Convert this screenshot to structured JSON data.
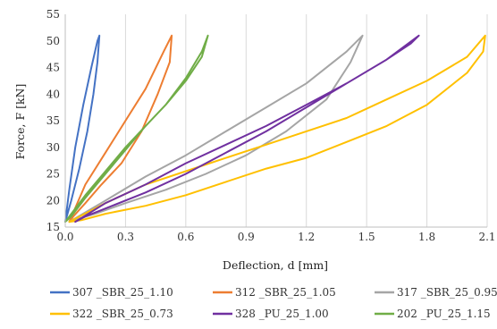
{
  "chart_data": {
    "type": "line",
    "xlabel": "Deflection, d [mm]",
    "ylabel": "Force, F [kN]",
    "xlim": [
      0,
      2.1
    ],
    "ylim": [
      15,
      55
    ],
    "xticks": [
      "0.0",
      "0.3",
      "0.6",
      "0.9",
      "1.2",
      "1.5",
      "1.8",
      "2.1"
    ],
    "yticks": [
      "15",
      "20",
      "25",
      "30",
      "35",
      "40",
      "45",
      "50",
      "55"
    ],
    "grid": "vertical",
    "legend_position": "bottom",
    "series": [
      {
        "name": "307  _SBR_25_1.10",
        "color": "#4472C4",
        "x": [
          0.0,
          0.02,
          0.05,
          0.09,
          0.13,
          0.16,
          0.17,
          0.16,
          0.14,
          0.11,
          0.07,
          0.03,
          0.0
        ],
        "y": [
          16,
          22,
          30,
          38,
          45,
          50,
          51,
          46,
          40,
          33,
          26,
          20,
          16
        ]
      },
      {
        "name": "312  _SBR_25_1.05",
        "color": "#ED7D31",
        "x": [
          0.02,
          0.1,
          0.2,
          0.3,
          0.4,
          0.49,
          0.53,
          0.52,
          0.46,
          0.38,
          0.28,
          0.18,
          0.1,
          0.04,
          0.02
        ],
        "y": [
          16,
          23,
          29,
          35,
          41,
          48,
          51,
          46,
          40,
          33,
          27,
          23,
          19.5,
          17,
          16
        ]
      },
      {
        "name": "317  _SBR_25_0.95",
        "color": "#A5A5A5",
        "x": [
          0.02,
          0.2,
          0.4,
          0.6,
          0.8,
          1.0,
          1.2,
          1.4,
          1.48,
          1.42,
          1.3,
          1.1,
          0.9,
          0.7,
          0.5,
          0.3,
          0.15,
          0.06,
          0.02
        ],
        "y": [
          16,
          20,
          24.5,
          28.5,
          33,
          37.5,
          42,
          48,
          51,
          46,
          39,
          33,
          28.5,
          25,
          22,
          19.5,
          17.5,
          16.5,
          16
        ]
      },
      {
        "name": "322  _SBR_25_0.73",
        "color": "#FFC000",
        "x": [
          0.02,
          0.2,
          0.4,
          0.6,
          0.8,
          1.0,
          1.2,
          1.4,
          1.6,
          1.8,
          2.0,
          2.09,
          2.08,
          2.0,
          1.8,
          1.6,
          1.4,
          1.2,
          1.0,
          0.8,
          0.6,
          0.4,
          0.2,
          0.08,
          0.02
        ],
        "y": [
          16,
          19.5,
          23,
          25.5,
          28,
          30.5,
          33,
          35.5,
          39,
          42.5,
          47,
          51,
          48,
          44,
          38,
          34,
          31,
          28,
          26,
          23.5,
          21,
          19,
          17.5,
          16.3,
          16
        ]
      },
      {
        "name": "328  _PU_25_1.00",
        "color": "#7030A0",
        "x": [
          0.05,
          0.2,
          0.4,
          0.6,
          0.8,
          1.0,
          1.2,
          1.4,
          1.6,
          1.76,
          1.72,
          1.6,
          1.4,
          1.2,
          1.0,
          0.8,
          0.6,
          0.4,
          0.2,
          0.1,
          0.05
        ],
        "y": [
          16,
          19.5,
          23,
          27,
          30.5,
          34,
          38,
          42,
          46.5,
          51,
          49.5,
          46.5,
          42,
          37.5,
          33,
          29,
          25,
          21.5,
          18.5,
          17,
          16
        ]
      },
      {
        "name": "202  _PU_25_1.15",
        "color": "#70AD47",
        "x": [
          0.0,
          0.1,
          0.2,
          0.3,
          0.4,
          0.5,
          0.6,
          0.68,
          0.71,
          0.68,
          0.6,
          0.5,
          0.4,
          0.3,
          0.2,
          0.1,
          0.03,
          0.0
        ],
        "y": [
          16,
          21,
          25.5,
          30,
          34,
          38,
          42.5,
          47,
          51,
          48,
          43,
          38,
          34,
          29.5,
          25,
          20.5,
          17,
          16
        ]
      }
    ]
  }
}
